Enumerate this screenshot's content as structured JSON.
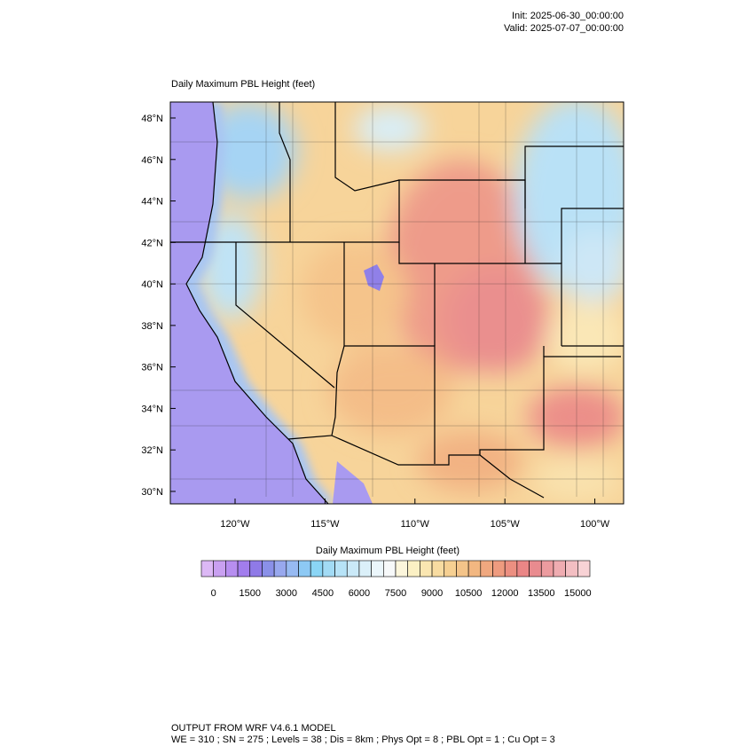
{
  "header": {
    "init": "Init: 2025-06-30_00:00:00",
    "valid": "Valid: 2025-07-07_00:00:00"
  },
  "map": {
    "title": "Daily Maximum PBL Height   (feet)",
    "lonlim": [
      -123.6,
      -98.4
    ],
    "latlim": [
      29.4,
      48.77
    ],
    "lon_ticks": [
      {
        "value": -120,
        "label": "120°W"
      },
      {
        "value": -115,
        "label": "115°W"
      },
      {
        "value": -110,
        "label": "110°W"
      },
      {
        "value": -105,
        "label": "105°W"
      },
      {
        "value": -100,
        "label": "100°W"
      }
    ],
    "lat_ticks": [
      {
        "value": 30,
        "label": "30°N"
      },
      {
        "value": 32,
        "label": "32°N"
      },
      {
        "value": 34,
        "label": "34°N"
      },
      {
        "value": 36,
        "label": "36°N"
      },
      {
        "value": 38,
        "label": "38°N"
      },
      {
        "value": 40,
        "label": "40°N"
      },
      {
        "value": 42,
        "label": "42°N"
      },
      {
        "value": 44,
        "label": "44°N"
      },
      {
        "value": 46,
        "label": "46°N"
      },
      {
        "value": 48,
        "label": "48°N"
      }
    ]
  },
  "colorbar": {
    "title": "Daily Maximum PBL Height  (feet)",
    "lim": [
      -500,
      15500
    ],
    "ticks": [
      0,
      1500,
      3000,
      4500,
      6000,
      7500,
      9000,
      10500,
      12000,
      13500,
      15000
    ],
    "colors": [
      "#dcb8f5",
      "#c9a0f1",
      "#b78ef0",
      "#a27ded",
      "#8f7ae7",
      "#8a90e8",
      "#98a8ee",
      "#97baf2",
      "#8dc9f4",
      "#8ad5f5",
      "#a2dbf5",
      "#b7e3f7",
      "#cae9f8",
      "#dbf0f9",
      "#ebf6fb",
      "#f7f9fa",
      "#fcf6dc",
      "#fbf0c4",
      "#fae6b1",
      "#f8dca1",
      "#f6d092",
      "#f4c489",
      "#f2b781",
      "#f0a87f",
      "#ee9b7f",
      "#ec8f81",
      "#ea8686",
      "#e98b8f",
      "#ec9b9f",
      "#efacb1",
      "#f3bec2",
      "#f8d2d5"
    ]
  },
  "footer": {
    "line1": "OUTPUT FROM WRF V4.6.1 MODEL",
    "line2": "WE = 310 ; SN = 275 ; Levels = 38 ; Dis = 8km ; Phys Opt = 8 ; PBL Opt = 1 ; Cu Opt = 3"
  }
}
